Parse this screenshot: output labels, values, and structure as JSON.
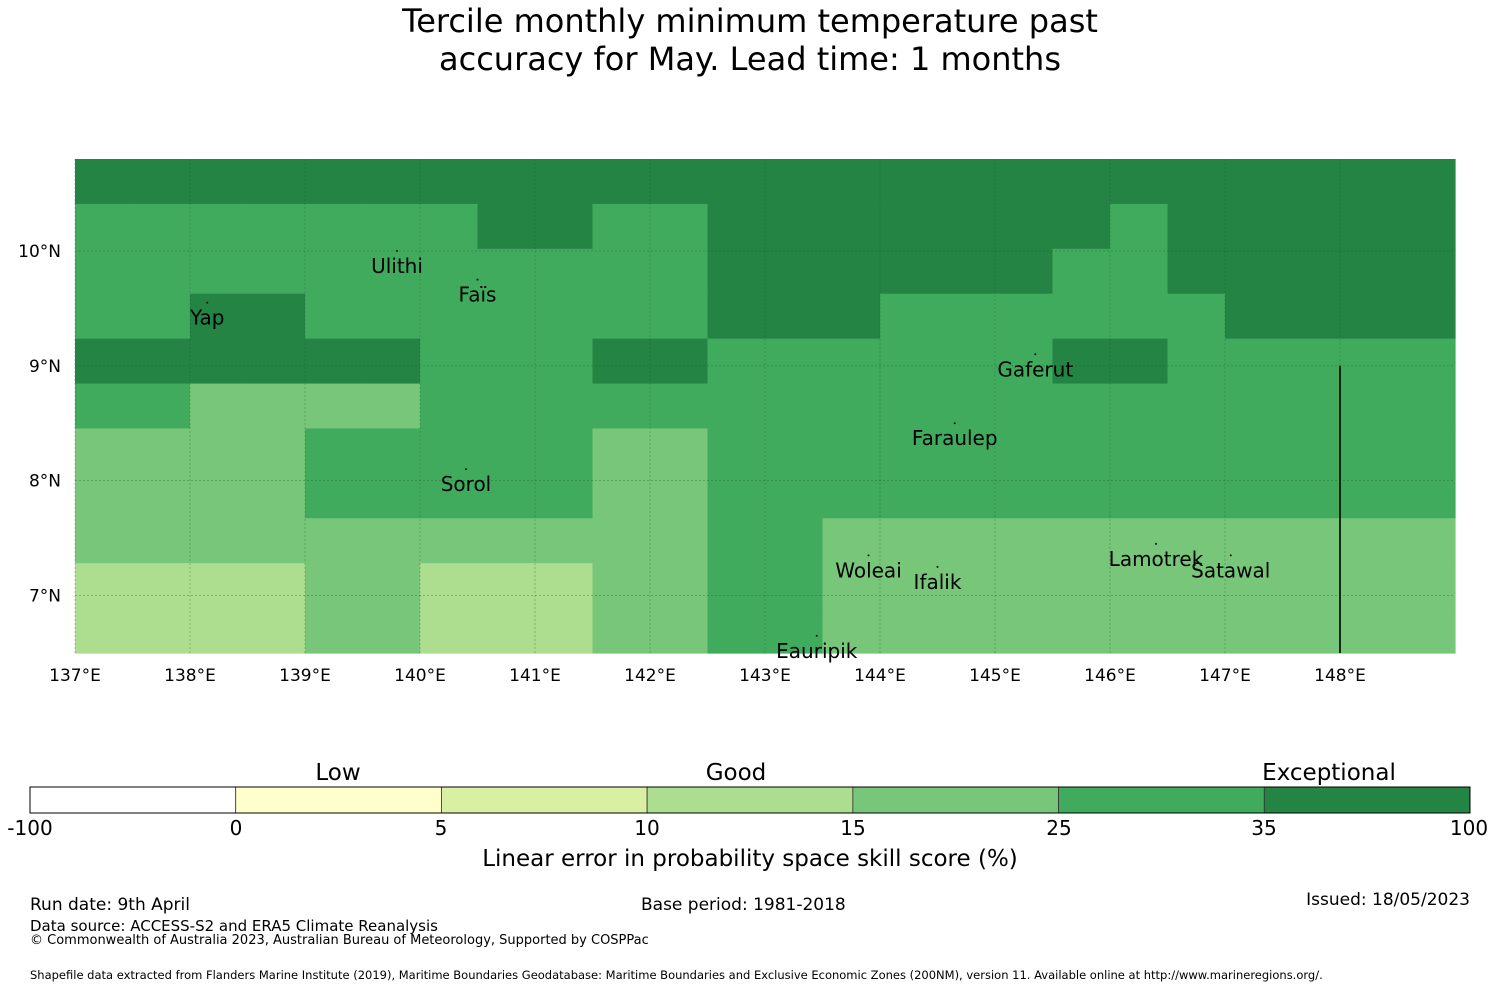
{
  "title": {
    "line1": "Tercile monthly minimum temperature past",
    "line2": "accuracy for May. Lead time: 1 months"
  },
  "map": {
    "lon_range": [
      137.0,
      149.0
    ],
    "lat_range": [
      6.5,
      10.8
    ],
    "lon_ticks": [
      {
        "value": 137,
        "label": "137°E"
      },
      {
        "value": 138,
        "label": "138°E"
      },
      {
        "value": 139,
        "label": "139°E"
      },
      {
        "value": 140,
        "label": "140°E"
      },
      {
        "value": 141,
        "label": "141°E"
      },
      {
        "value": 142,
        "label": "142°E"
      },
      {
        "value": 143,
        "label": "143°E"
      },
      {
        "value": 144,
        "label": "144°E"
      },
      {
        "value": 145,
        "label": "145°E"
      },
      {
        "value": 146,
        "label": "146°E"
      },
      {
        "value": 147,
        "label": "147°E"
      },
      {
        "value": 148,
        "label": "148°E"
      }
    ],
    "lat_ticks": [
      {
        "value": 7,
        "label": "7°N"
      },
      {
        "value": 8,
        "label": "8°N"
      },
      {
        "value": 9,
        "label": "9°N"
      },
      {
        "value": 10,
        "label": "10°N"
      }
    ],
    "islands": [
      {
        "name": "Ulithi",
        "lon": 139.8,
        "lat": 10.0
      },
      {
        "name": "Faïs",
        "lon": 140.5,
        "lat": 9.75
      },
      {
        "name": "Yap",
        "lon": 138.15,
        "lat": 9.55
      },
      {
        "name": "Gaferut",
        "lon": 145.35,
        "lat": 9.1
      },
      {
        "name": "Faraulep",
        "lon": 144.65,
        "lat": 8.5
      },
      {
        "name": "Sorol",
        "lon": 140.4,
        "lat": 8.1
      },
      {
        "name": "Woleai",
        "lon": 143.9,
        "lat": 7.35
      },
      {
        "name": "Ifalik",
        "lon": 144.5,
        "lat": 7.25
      },
      {
        "name": "Lamotrek",
        "lon": 146.4,
        "lat": 7.45
      },
      {
        "name": "Satawal",
        "lon": 147.05,
        "lat": 7.35
      },
      {
        "name": "Eauripik",
        "lon": 143.45,
        "lat": 6.65
      }
    ],
    "eez_boundary": {
      "lon": 148.0,
      "lat_from": 9.0,
      "lat_to": 6.5
    }
  },
  "grid": {
    "rows": [
      [
        "35-100",
        "35-100",
        "35-100",
        "35-100",
        "35-100",
        "35-100",
        "35-100",
        "35-100",
        "35-100",
        "35-100",
        "35-100",
        "35-100",
        "35-100",
        "35-100",
        "35-100",
        "35-100",
        "35-100",
        "35-100",
        "35-100",
        "35-100",
        "35-100",
        "35-100",
        "35-100",
        "35-100"
      ],
      [
        "25-35",
        "25-35",
        "25-35",
        "25-35",
        "25-35",
        "25-35",
        "25-35",
        "35-100",
        "35-100",
        "25-35",
        "25-35",
        "35-100",
        "35-100",
        "35-100",
        "35-100",
        "35-100",
        "35-100",
        "35-100",
        "25-35",
        "35-100",
        "35-100",
        "35-100",
        "35-100",
        "35-100"
      ],
      [
        "25-35",
        "25-35",
        "25-35",
        "25-35",
        "25-35",
        "25-35",
        "25-35",
        "25-35",
        "25-35",
        "25-35",
        "25-35",
        "35-100",
        "35-100",
        "35-100",
        "35-100",
        "35-100",
        "35-100",
        "25-35",
        "25-35",
        "35-100",
        "35-100",
        "35-100",
        "35-100",
        "35-100"
      ],
      [
        "25-35",
        "25-35",
        "35-100",
        "35-100",
        "25-35",
        "25-35",
        "25-35",
        "25-35",
        "25-35",
        "25-35",
        "25-35",
        "35-100",
        "35-100",
        "35-100",
        "25-35",
        "25-35",
        "25-35",
        "25-35",
        "25-35",
        "25-35",
        "35-100",
        "35-100",
        "35-100",
        "35-100"
      ],
      [
        "35-100",
        "35-100",
        "35-100",
        "35-100",
        "35-100",
        "35-100",
        "25-35",
        "25-35",
        "25-35",
        "35-100",
        "35-100",
        "25-35",
        "25-35",
        "25-35",
        "25-35",
        "25-35",
        "25-35",
        "35-100",
        "35-100",
        "25-35",
        "25-35",
        "25-35",
        "25-35",
        "25-35"
      ],
      [
        "25-35",
        "25-35",
        "15-25",
        "15-25",
        "15-25",
        "15-25",
        "25-35",
        "25-35",
        "25-35",
        "25-35",
        "25-35",
        "25-35",
        "25-35",
        "25-35",
        "25-35",
        "25-35",
        "25-35",
        "25-35",
        "25-35",
        "25-35",
        "25-35",
        "25-35",
        "25-35",
        "25-35"
      ],
      [
        "15-25",
        "15-25",
        "15-25",
        "15-25",
        "25-35",
        "25-35",
        "25-35",
        "25-35",
        "25-35",
        "15-25",
        "15-25",
        "25-35",
        "25-35",
        "25-35",
        "25-35",
        "25-35",
        "25-35",
        "25-35",
        "25-35",
        "25-35",
        "25-35",
        "25-35",
        "25-35",
        "25-35"
      ],
      [
        "15-25",
        "15-25",
        "15-25",
        "15-25",
        "25-35",
        "25-35",
        "25-35",
        "25-35",
        "25-35",
        "15-25",
        "15-25",
        "25-35",
        "25-35",
        "25-35",
        "25-35",
        "25-35",
        "25-35",
        "25-35",
        "25-35",
        "25-35",
        "25-35",
        "25-35",
        "25-35",
        "25-35"
      ],
      [
        "15-25",
        "15-25",
        "15-25",
        "15-25",
        "15-25",
        "15-25",
        "15-25",
        "15-25",
        "15-25",
        "15-25",
        "15-25",
        "25-35",
        "25-35",
        "15-25",
        "15-25",
        "15-25",
        "15-25",
        "15-25",
        "15-25",
        "15-25",
        "15-25",
        "15-25",
        "15-25",
        "15-25"
      ],
      [
        "10-15",
        "10-15",
        "10-15",
        "10-15",
        "15-25",
        "15-25",
        "10-15",
        "10-15",
        "10-15",
        "15-25",
        "15-25",
        "25-35",
        "25-35",
        "15-25",
        "15-25",
        "15-25",
        "15-25",
        "15-25",
        "15-25",
        "15-25",
        "15-25",
        "15-25",
        "15-25",
        "15-25"
      ],
      [
        "10-15",
        "10-15",
        "10-15",
        "10-15",
        "15-25",
        "15-25",
        "10-15",
        "10-15",
        "10-15",
        "15-25",
        "15-25",
        "25-35",
        "25-35",
        "15-25",
        "15-25",
        "15-25",
        "15-25",
        "15-25",
        "15-25",
        "15-25",
        "15-25",
        "15-25",
        "15-25",
        "15-25"
      ]
    ]
  },
  "colorbar": {
    "bins": [
      {
        "from": "-100",
        "to": "0",
        "color": "#ffffff"
      },
      {
        "from": "0",
        "to": "5",
        "color": "#ffffcc"
      },
      {
        "from": "5",
        "to": "10",
        "color": "#d9f0a3"
      },
      {
        "from": "10",
        "to": "15",
        "color": "#addd8e"
      },
      {
        "from": "15",
        "to": "25",
        "color": "#78c679"
      },
      {
        "from": "25",
        "to": "35",
        "color": "#41ab5d"
      },
      {
        "from": "35",
        "to": "100",
        "color": "#238443"
      }
    ],
    "tick_labels": [
      "-100",
      "0",
      "5",
      "10",
      "15",
      "25",
      "35",
      "100"
    ],
    "categories": [
      "Low",
      "Good",
      "Exceptional"
    ],
    "label": "Linear error in probability space skill score (%)"
  },
  "footer": {
    "run_date": "Run date: 9th April",
    "base_period": "Base period: 1981-2018",
    "issued": "Issued: 18/05/2023",
    "data_source": "Data source: ACCESS-S2 and ERA5 Climate Reanalysis",
    "copyright": "© Commonwealth of Australia 2023, Australian Bureau of Meteorology, Supported by COSPPac",
    "shapefile": "Shapefile data extracted from Flanders Marine Institute (2019), Maritime Boundaries Geodatabase: Maritime Boundaries and Exclusive Economic Zones (200NM), version 11. Available online at http://www.marineregions.org/."
  }
}
